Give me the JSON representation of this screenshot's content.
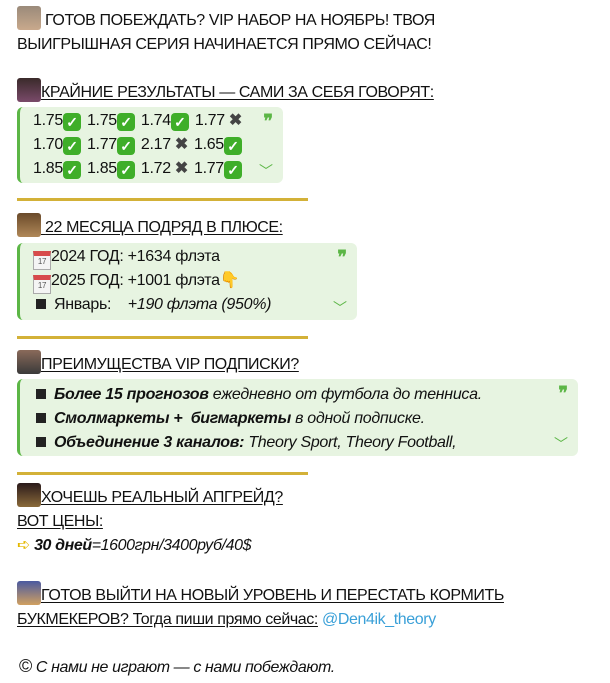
{
  "intro": {
    "line1": "ГОТОВ ПОБЕЖДАТЬ? VIP НАБОР НА НОЯБРЬ! ТВОЯ",
    "line2": "ВЫИГРЫШНАЯ СЕРИЯ НАЧИНАЕТСЯ ПРЯМО СЕЙЧАС!"
  },
  "results": {
    "heading": "КРАЙНИЕ РЕЗУЛЬТАТЫ — САМИ ЗА СЕБЯ ГОВОРЯТ:",
    "rows": [
      [
        {
          "v": "1.75",
          "win": true
        },
        {
          "v": "1.75",
          "win": true
        },
        {
          "v": "1.74",
          "win": true
        },
        {
          "v": "1.77",
          "win": false
        }
      ],
      [
        {
          "v": "1.70",
          "win": true
        },
        {
          "v": "1.77",
          "win": true
        },
        {
          "v": "2.17",
          "win": false
        },
        {
          "v": "1.65",
          "win": true
        }
      ],
      [
        {
          "v": "1.85",
          "win": true
        },
        {
          "v": "1.85",
          "win": true
        },
        {
          "v": "1.72",
          "win": false
        },
        {
          "v": "1.77",
          "win": true
        }
      ]
    ]
  },
  "months": {
    "heading": "22 МЕСЯЦА ПОДРЯД В ПЛЮСЕ:",
    "calendar_day": "17",
    "y2024": "2024 ГОД: +1634 флэта",
    "y2025": "2025 ГОД: +1001 флэта",
    "jan_label": "Январь:",
    "jan_value": "+190 флэта (950%)"
  },
  "benefits": {
    "heading": "ПРЕИМУЩЕСТВА VIP ПОДПИСКИ?",
    "b1_bold": "Более 15 прогнозов",
    "b1_rest": " ежедневно от футбола до тенниса.",
    "b2_bold": "Смолмаркеты +  бигмаркеты",
    "b2_rest": " в одной подписке.",
    "b3_bold": "Объединение 3 каналов:",
    "b3_rest": " Theory Sport, Theory Football,"
  },
  "prices": {
    "heading": "ХОЧЕШЬ РЕАЛЬНЫЙ АПГРЕЙД?",
    "sub": "ВОТ ЦЕНЫ:",
    "days": "30 дней",
    "value": "=1600грн/3400руб/40$"
  },
  "cta": {
    "line1": "ГОТОВ ВЫЙТИ НА НОВЫЙ УРОВЕНЬ И ПЕРЕСТАТЬ КОРМИТЬ",
    "line2": "БУКМЕКЕРОВ? Тогда пиши прямо сейчас:",
    "link": "@Den4ik_theory"
  },
  "footer": {
    "symbol": "©",
    "text": "С нами не играют — с нами побеждают."
  },
  "colors": {
    "quote_bg": "#e7f4e1",
    "quote_accent": "#5cb646",
    "divider": "#d3b138",
    "link": "#3aa0d8"
  }
}
